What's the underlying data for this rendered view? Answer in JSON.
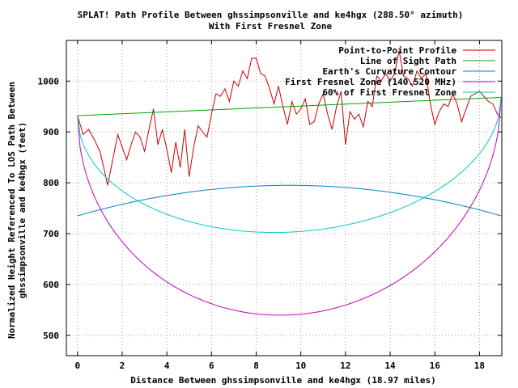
{
  "chart_data": {
    "type": "line",
    "title": "SPLAT! Path Profile Between ghssimpsonville and ke4hgx (288.50° azimuth)",
    "subtitle": "With First Fresnel Zone",
    "xlabel": "Distance Between ghssimpsonville and ke4hgx (18.97 miles)",
    "ylabel_line1": "Normalized Height Referenced To LOS Path Between",
    "ylabel_line2": "ghssimpsonville and ke4hgx (feet)",
    "xlim": [
      -0.5,
      19.0
    ],
    "ylim": [
      460,
      1080
    ],
    "x_ticks": [
      0,
      2,
      4,
      6,
      8,
      10,
      12,
      14,
      16,
      18
    ],
    "y_ticks": [
      500,
      600,
      700,
      800,
      900,
      1000
    ],
    "grid": true,
    "legend_position": "top-right",
    "series": [
      {
        "name": "Point-to-Point Profile",
        "color": "#cc0000",
        "x": [
          0,
          0.25,
          0.5,
          0.75,
          1.0,
          1.2,
          1.35,
          1.55,
          1.8,
          2.0,
          2.2,
          2.4,
          2.6,
          2.8,
          3.0,
          3.2,
          3.4,
          3.6,
          3.8,
          4.0,
          4.2,
          4.4,
          4.6,
          4.8,
          5.0,
          5.2,
          5.4,
          5.6,
          5.8,
          6.0,
          6.2,
          6.4,
          6.6,
          6.8,
          7.0,
          7.2,
          7.4,
          7.6,
          7.8,
          8.0,
          8.2,
          8.4,
          8.6,
          8.8,
          9.0,
          9.2,
          9.4,
          9.6,
          9.8,
          10.0,
          10.2,
          10.4,
          10.6,
          10.8,
          11.0,
          11.2,
          11.4,
          11.6,
          11.8,
          12.0,
          12.2,
          12.4,
          12.6,
          12.8,
          13.0,
          13.2,
          13.4,
          13.6,
          13.8,
          14.0,
          14.2,
          14.4,
          14.6,
          14.8,
          15.0,
          15.2,
          15.4,
          15.6,
          15.8,
          16.0,
          16.2,
          16.4,
          16.6,
          16.8,
          17.0,
          17.2,
          17.4,
          17.6,
          17.8,
          18.0,
          18.2,
          18.4,
          18.6,
          18.8,
          18.97
        ],
        "y": [
          932,
          895,
          905,
          885,
          862,
          825,
          795,
          840,
          895,
          870,
          845,
          875,
          900,
          890,
          862,
          905,
          945,
          875,
          905,
          865,
          820,
          880,
          830,
          905,
          812,
          870,
          912,
          900,
          890,
          935,
          975,
          970,
          985,
          960,
          1000,
          990,
          1020,
          1005,
          1045,
          1045,
          1015,
          1010,
          985,
          955,
          990,
          950,
          915,
          960,
          935,
          945,
          965,
          915,
          920,
          955,
          975,
          935,
          905,
          950,
          980,
          875,
          940,
          925,
          935,
          910,
          960,
          950,
          1010,
          1000,
          1015,
          1000,
          1015,
          1060,
          1010,
          1005,
          990,
          1020,
          1005,
          1015,
          955,
          915,
          940,
          955,
          950,
          975,
          955,
          920,
          945,
          970,
          975,
          980,
          970,
          960,
          955,
          935,
          928
        ]
      },
      {
        "name": "Line of Sight Path",
        "color": "#00a000",
        "x": [
          0,
          18.97
        ],
        "y": [
          932,
          968
        ]
      },
      {
        "name": "Earth's Curvature Contour",
        "color": "#0080c0",
        "shape": "parabola",
        "x": [
          0,
          9.485,
          18.97
        ],
        "y": [
          735,
          795,
          735
        ]
      },
      {
        "name": "First Fresnel Zone (140.520 MHz)",
        "color": "#c000c0",
        "shape": "half-ellipse-below-los",
        "x": [
          0,
          9.485,
          18.97
        ],
        "y": [
          932,
          540,
          968
        ]
      },
      {
        "name": "60% of First Fresnel Zone",
        "color": "#00c8d0",
        "shape": "half-ellipse-below-los",
        "x": [
          0,
          9.485,
          18.97
        ],
        "y": [
          932,
          703,
          968
        ]
      }
    ]
  }
}
